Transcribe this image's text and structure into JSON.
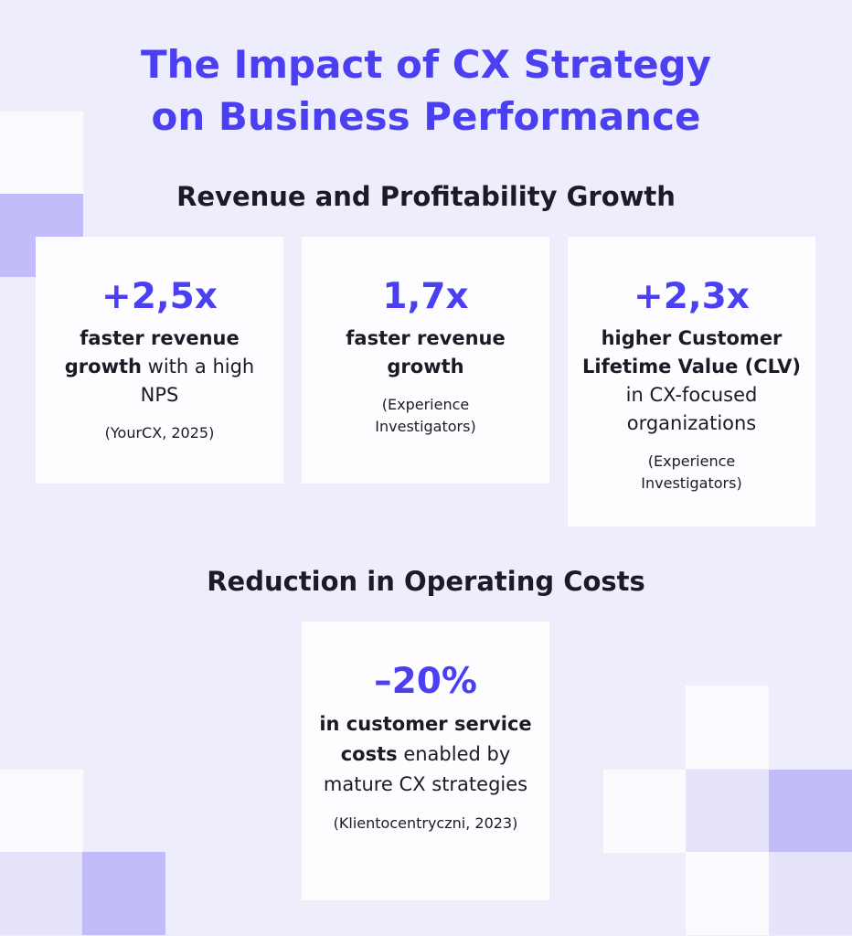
{
  "header": {
    "title": [
      "The Impact of CX Strategy",
      "on Business Performance"
    ]
  },
  "sections": [
    {
      "heading": "Revenue and Profitability Growth",
      "cards": [
        {
          "stat": "+2,5x",
          "highlight": "faster revenue growth",
          "text": "with a high NPS",
          "source": "(YourCX, 2025)"
        },
        {
          "stat": "1,7x",
          "highlight": "faster revenue growth",
          "source": "(Experience Investigators)"
        },
        {
          "stat": "+2,3x",
          "highlight": "higher Customer Lifetime Value (CLV)",
          "text": "in CX-focused organizations",
          "source": "(Experience Investigators)"
        }
      ]
    },
    {
      "heading": "Reduction in Operating Costs",
      "cards": [
        {
          "stat": "–20%",
          "highlight": "in customer service costs",
          "text": "enabled by mature CX strategies",
          "source": "(Klientocentryczni, 2023)"
        }
      ]
    }
  ]
}
